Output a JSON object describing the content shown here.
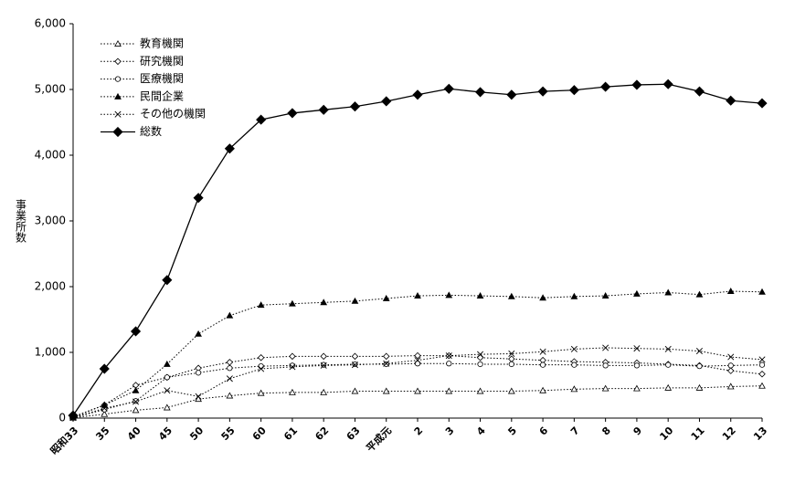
{
  "chart_data": {
    "type": "line",
    "y_label": "事業所数",
    "categories": [
      "昭和33",
      "35",
      "40",
      "45",
      "50",
      "55",
      "60",
      "61",
      "62",
      "63",
      "平成元",
      "2",
      "3",
      "4",
      "5",
      "6",
      "7",
      "8",
      "9",
      "10",
      "11",
      "12",
      "13"
    ],
    "ylim": [
      0,
      6000
    ],
    "yticks": [
      0,
      {
        "value": 1000,
        "label": "1,000"
      },
      {
        "value": 2000,
        "label": "2,000"
      },
      {
        "value": 3000,
        "label": "3,000"
      },
      {
        "value": 4000,
        "label": "4,000"
      },
      {
        "value": 5000,
        "label": "5,000"
      },
      {
        "value": 6000,
        "label": "6,000"
      }
    ],
    "grid": false,
    "legend": "upper left",
    "series": [
      {
        "name": "教育機関",
        "color": "#000000",
        "marker": "triangle-open",
        "line": "dotted",
        "values": [
          5,
          60,
          120,
          160,
          290,
          340,
          380,
          390,
          390,
          410,
          410,
          410,
          410,
          410,
          410,
          420,
          440,
          450,
          450,
          460,
          460,
          480,
          490
        ]
      },
      {
        "name": "研究機関",
        "color": "#000000",
        "marker": "diamond-open",
        "line": "dotted",
        "values": [
          10,
          200,
          500,
          620,
          760,
          850,
          920,
          940,
          940,
          940,
          940,
          950,
          950,
          920,
          900,
          880,
          860,
          850,
          840,
          820,
          800,
          720,
          670
        ]
      },
      {
        "name": "医療機関",
        "color": "#000000",
        "marker": "circle-open",
        "line": "dotted",
        "values": [
          5,
          130,
          260,
          620,
          690,
          760,
          790,
          800,
          810,
          820,
          820,
          830,
          830,
          820,
          820,
          810,
          810,
          800,
          800,
          810,
          790,
          800,
          810
        ]
      },
      {
        "name": "民間企業",
        "color": "#000000",
        "marker": "triangle",
        "line": "dotted",
        "values": [
          20,
          200,
          420,
          820,
          1280,
          1560,
          1720,
          1740,
          1760,
          1780,
          1820,
          1860,
          1870,
          1860,
          1850,
          1830,
          1850,
          1860,
          1890,
          1910,
          1880,
          1930,
          1920
        ]
      },
      {
        "name": "その他の機関",
        "color": "#000000",
        "marker": "cross",
        "line": "dotted",
        "values": [
          5,
          150,
          250,
          420,
          330,
          600,
          750,
          780,
          800,
          810,
          830,
          880,
          950,
          970,
          980,
          1010,
          1050,
          1070,
          1060,
          1050,
          1020,
          930,
          890
        ]
      },
      {
        "name": "総数",
        "color": "#000000",
        "marker": "diamond",
        "line": "solid",
        "values": [
          40,
          750,
          1320,
          2100,
          3350,
          4100,
          4540,
          4640,
          4690,
          4740,
          4820,
          4920,
          5010,
          4960,
          4920,
          4970,
          4990,
          5040,
          5070,
          5080,
          4970,
          4830,
          4790
        ]
      }
    ]
  }
}
